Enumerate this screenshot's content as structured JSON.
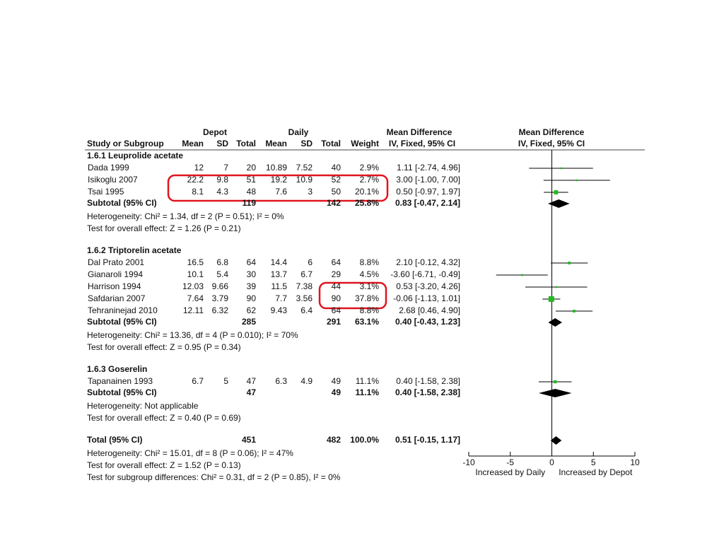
{
  "chart_data": {
    "type": "forest",
    "header": {
      "group1": "Depot",
      "group2": "Daily",
      "effect": "Mean Difference",
      "plot": "Mean Difference"
    },
    "columns": [
      "Study or Subgroup",
      "Mean",
      "SD",
      "Total",
      "Mean",
      "SD",
      "Total",
      "Weight",
      "IV, Fixed, 95% CI",
      "IV, Fixed, 95% CI"
    ],
    "groups": [
      {
        "title": "1.6.1 Leuprolide acetate",
        "studies": [
          {
            "name": "Dada 1999",
            "depot": [
              12,
              7,
              20
            ],
            "daily": [
              10.89,
              7.52,
              40
            ],
            "weight": {
              "value": 2.9,
              "label": "2.9%"
            },
            "md": {
              "value": 1.11,
              "lo": -2.74,
              "hi": 4.96,
              "label": "1.11 [-2.74, 4.96]"
            }
          },
          {
            "name": "Isikoglu 2007",
            "depot": [
              22.2,
              9.8,
              51
            ],
            "daily": [
              19.2,
              10.9,
              52
            ],
            "weight": {
              "value": 2.7,
              "label": "2.7%"
            },
            "md": {
              "value": 3,
              "lo": -1,
              "hi": 7,
              "label": "3.00 [-1.00, 7.00]"
            }
          },
          {
            "name": "Tsai 1995",
            "depot": [
              8.1,
              4.3,
              48
            ],
            "daily": [
              7.6,
              3,
              50
            ],
            "weight": {
              "value": 20.1,
              "label": "20.1%"
            },
            "md": {
              "value": 0.5,
              "lo": -0.97,
              "hi": 1.97,
              "label": "0.50 [-0.97, 1.97]"
            }
          }
        ],
        "subtotal": {
          "name": "Subtotal (95% CI)",
          "depot_total": 119,
          "daily_total": 142,
          "weight": {
            "value": 25.8,
            "label": "25.8%"
          },
          "md": {
            "value": 0.83,
            "lo": -0.47,
            "hi": 2.14,
            "label": "0.83 [-0.47, 2.14]"
          }
        },
        "heterogeneity": "Heterogeneity: Chi² = 1.34, df = 2 (P = 0.51); I² = 0%",
        "overall": "Test for overall effect: Z = 1.26 (P = 0.21)"
      },
      {
        "title": "1.6.2 Triptorelin acetate",
        "studies": [
          {
            "name": "Dal Prato 2001",
            "depot": [
              16.5,
              6.8,
              64
            ],
            "daily": [
              14.4,
              6,
              64
            ],
            "weight": {
              "value": 8.8,
              "label": "8.8%"
            },
            "md": {
              "value": 2.1,
              "lo": -0.12,
              "hi": 4.32,
              "label": "2.10 [-0.12, 4.32]"
            }
          },
          {
            "name": "Gianaroli 1994",
            "depot": [
              10.1,
              5.4,
              30
            ],
            "daily": [
              13.7,
              6.7,
              29
            ],
            "weight": {
              "value": 4.5,
              "label": "4.5%"
            },
            "md": {
              "value": -3.6,
              "lo": -6.71,
              "hi": -0.49,
              "label": "-3.60 [-6.71, -0.49]"
            }
          },
          {
            "name": "Harrison 1994",
            "depot": [
              12.03,
              9.66,
              39
            ],
            "daily": [
              11.5,
              7.38,
              44
            ],
            "weight": {
              "value": 3.1,
              "label": "3.1%"
            },
            "md": {
              "value": 0.53,
              "lo": -3.2,
              "hi": 4.26,
              "label": "0.53 [-3.20, 4.26]"
            }
          },
          {
            "name": "Safdarian 2007",
            "depot": [
              7.64,
              3.79,
              90
            ],
            "daily": [
              7.7,
              3.56,
              90
            ],
            "weight": {
              "value": 37.8,
              "label": "37.8%"
            },
            "md": {
              "value": -0.06,
              "lo": -1.13,
              "hi": 1.01,
              "label": "-0.06 [-1.13, 1.01]"
            }
          },
          {
            "name": "Tehraninejad 2010",
            "depot": [
              12.11,
              6.32,
              62
            ],
            "daily": [
              9.43,
              6.4,
              64
            ],
            "weight": {
              "value": 8.8,
              "label": "8.8%"
            },
            "md": {
              "value": 2.68,
              "lo": 0.46,
              "hi": 4.9,
              "label": "2.68 [0.46, 4.90]"
            }
          }
        ],
        "subtotal": {
          "name": "Subtotal (95% CI)",
          "depot_total": 285,
          "daily_total": 291,
          "weight": {
            "value": 63.1,
            "label": "63.1%"
          },
          "md": {
            "value": 0.4,
            "lo": -0.43,
            "hi": 1.23,
            "label": "0.40 [-0.43, 1.23]"
          }
        },
        "heterogeneity": "Heterogeneity: Chi² = 13.36, df = 4 (P = 0.010); I² = 70%",
        "overall": "Test for overall effect: Z = 0.95 (P = 0.34)"
      },
      {
        "title": "1.6.3 Goserelin",
        "studies": [
          {
            "name": "Tapanainen 1993",
            "depot": [
              6.7,
              5,
              47
            ],
            "daily": [
              6.3,
              4.9,
              49
            ],
            "weight": {
              "value": 11.1,
              "label": "11.1%"
            },
            "md": {
              "value": 0.4,
              "lo": -1.58,
              "hi": 2.38,
              "label": "0.40 [-1.58, 2.38]"
            }
          }
        ],
        "subtotal": {
          "name": "Subtotal (95% CI)",
          "depot_total": 47,
          "daily_total": 49,
          "weight": {
            "value": 11.1,
            "label": "11.1%"
          },
          "md": {
            "value": 0.4,
            "lo": -1.58,
            "hi": 2.38,
            "label": "0.40 [-1.58, 2.38]"
          }
        },
        "heterogeneity": "Heterogeneity: Not applicable",
        "overall": "Test for overall effect: Z = 0.40 (P = 0.69)"
      }
    ],
    "total": {
      "name": "Total (95% CI)",
      "depot_total": 451,
      "daily_total": 482,
      "weight": {
        "value": 100,
        "label": "100.0%"
      },
      "md": {
        "value": 0.51,
        "lo": -0.15,
        "hi": 1.17,
        "label": "0.51 [-0.15, 1.17]"
      }
    },
    "total_notes": [
      "Heterogeneity: Chi² = 15.01, df = 8 (P = 0.06); I² = 47%",
      "Test for overall effect: Z = 1.52 (P = 0.13)",
      "Test for subgroup differences: Chi² = 0.31, df = 2 (P = 0.85), I² = 0%"
    ],
    "xlim": [
      -10,
      10
    ],
    "xticks": [
      -10,
      -5,
      0,
      5,
      10
    ],
    "xlabel_left": "Increased by Daily",
    "xlabel_right": "Increased by Depot",
    "square_color": "#22bb22",
    "line_color": "#000000"
  }
}
